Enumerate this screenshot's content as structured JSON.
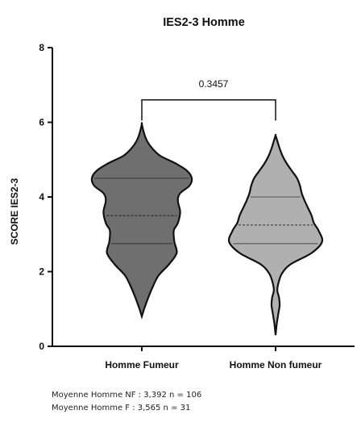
{
  "chart_data": {
    "type": "violin",
    "title": "IES2-3 Homme",
    "xlabel": "",
    "ylabel": "SCORE IES2-3",
    "ylim": [
      0,
      8
    ],
    "yticks": [
      "0",
      "2",
      "4",
      "6",
      "8"
    ],
    "grid": false,
    "categories": [
      "Homme Fumeur",
      "Homme Non fumeur"
    ],
    "series": [
      {
        "category": "Homme Fumeur",
        "color": "#6f6f6f",
        "min": 0.8,
        "max": 5.95,
        "q1": 2.75,
        "median": 3.5,
        "q3": 4.5,
        "density": [
          [
            0.8,
            0.0
          ],
          [
            1.0,
            0.04
          ],
          [
            1.3,
            0.11
          ],
          [
            1.6,
            0.19
          ],
          [
            1.9,
            0.29
          ],
          [
            2.2,
            0.47
          ],
          [
            2.5,
            0.6
          ],
          [
            2.8,
            0.56
          ],
          [
            3.1,
            0.55
          ],
          [
            3.3,
            0.62
          ],
          [
            3.6,
            0.66
          ],
          [
            3.9,
            0.62
          ],
          [
            4.1,
            0.66
          ],
          [
            4.3,
            0.82
          ],
          [
            4.5,
            0.86
          ],
          [
            4.7,
            0.78
          ],
          [
            4.9,
            0.58
          ],
          [
            5.1,
            0.32
          ],
          [
            5.3,
            0.18
          ],
          [
            5.5,
            0.09
          ],
          [
            5.7,
            0.04
          ],
          [
            5.95,
            0.0
          ]
        ]
      },
      {
        "category": "Homme Non fumeur",
        "color": "#b0b0b0",
        "min": 0.3,
        "max": 5.65,
        "q1": 2.75,
        "median": 3.25,
        "q3": 4.0,
        "density": [
          [
            0.3,
            0.0
          ],
          [
            0.6,
            0.02
          ],
          [
            0.9,
            0.05
          ],
          [
            1.1,
            0.07
          ],
          [
            1.3,
            0.06
          ],
          [
            1.5,
            0.03
          ],
          [
            1.7,
            0.05
          ],
          [
            1.95,
            0.11
          ],
          [
            2.2,
            0.26
          ],
          [
            2.5,
            0.62
          ],
          [
            2.8,
            0.8
          ],
          [
            3.1,
            0.74
          ],
          [
            3.3,
            0.66
          ],
          [
            3.5,
            0.62
          ],
          [
            3.7,
            0.56
          ],
          [
            3.9,
            0.5
          ],
          [
            4.1,
            0.45
          ],
          [
            4.3,
            0.42
          ],
          [
            4.5,
            0.37
          ],
          [
            4.7,
            0.28
          ],
          [
            4.9,
            0.19
          ],
          [
            5.1,
            0.12
          ],
          [
            5.3,
            0.07
          ],
          [
            5.5,
            0.03
          ],
          [
            5.65,
            0.0
          ]
        ]
      }
    ],
    "annotations": {
      "comparison_p_value": "0.3457"
    }
  },
  "footnotes": {
    "line1": "Moyenne Homme NF : 3,392 n = 106",
    "line2": "Moyenne Homme F : 3,565 n = 31"
  }
}
